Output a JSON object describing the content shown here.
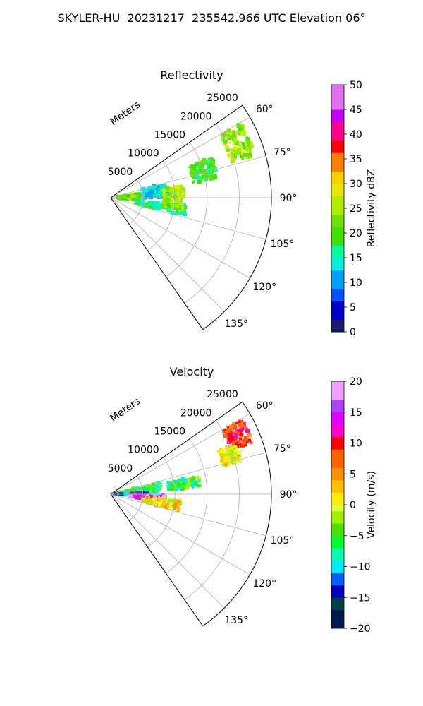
{
  "suptitle": "SKYLER-HU  20231217  235542.966 UTC Elevation 06°",
  "chart_data": [
    {
      "type": "polar-sector",
      "title": "Reflectivity",
      "radial_label": "Meters",
      "radial_ticks": [
        "5000",
        "10000",
        "15000",
        "20000",
        "25000"
      ],
      "radial_tick_values": [
        5000,
        10000,
        15000,
        20000,
        25000
      ],
      "rmax": 25000,
      "azimuth_range": [
        55,
        145
      ],
      "azimuth_ticks": [
        "60°",
        "75°",
        "90°",
        "105°",
        "120°",
        "135°"
      ],
      "azimuth_tick_values": [
        60,
        75,
        90,
        105,
        120,
        135
      ],
      "grid": true,
      "colorbar": {
        "label": "Reflectivity dBZ",
        "min": 0,
        "max": 50,
        "ticks": [
          "0",
          "5",
          "10",
          "15",
          "20",
          "25",
          "30",
          "35",
          "40",
          "45",
          "50"
        ],
        "tick_values": [
          0,
          5,
          10,
          15,
          20,
          25,
          30,
          35,
          40,
          45,
          50
        ]
      },
      "echo_regions": [
        {
          "az": [
            60,
            74
          ],
          "r": [
            19500,
            23500
          ],
          "value": 24
        },
        {
          "az": [
            82,
            95
          ],
          "r": [
            1000,
            5000
          ],
          "value": 22
        },
        {
          "az": [
            95,
            104
          ],
          "r": [
            4000,
            12000
          ],
          "value": 16
        },
        {
          "az": [
            75,
            90
          ],
          "r": [
            5000,
            9000
          ],
          "value": 13
        },
        {
          "az": [
            80,
            100
          ],
          "r": [
            8000,
            11500
          ],
          "value": 24
        },
        {
          "az": [
            68,
            80
          ],
          "r": [
            13000,
            17000
          ],
          "value": 20
        }
      ]
    },
    {
      "type": "polar-sector",
      "title": "Velocity",
      "radial_label": "Meters",
      "radial_ticks": [
        "5000",
        "10000",
        "15000",
        "20000",
        "25000"
      ],
      "radial_tick_values": [
        5000,
        10000,
        15000,
        20000,
        25000
      ],
      "rmax": 25000,
      "azimuth_range": [
        55,
        145
      ],
      "azimuth_ticks": [
        "60°",
        "75°",
        "90°",
        "105°",
        "120°",
        "135°"
      ],
      "azimuth_tick_values": [
        60,
        75,
        90,
        105,
        120,
        135
      ],
      "grid": true,
      "colorbar": {
        "label": "Velocity (m/s)",
        "min": -20,
        "max": 20,
        "ticks": [
          "−20",
          "−15",
          "−10",
          "−5",
          "0",
          "5",
          "10",
          "15",
          "20"
        ],
        "tick_values": [
          -20,
          -15,
          -10,
          -5,
          0,
          5,
          10,
          15,
          20
        ]
      },
      "echo_regions": [
        {
          "az": [
            60,
            70
          ],
          "r": [
            20000,
            23500
          ],
          "value": 9
        },
        {
          "az": [
            68,
            76
          ],
          "r": [
            18000,
            21000
          ],
          "value": 1
        },
        {
          "az": [
            76,
            88
          ],
          "r": [
            1000,
            8000
          ],
          "value": -5
        },
        {
          "az": [
            88,
            92
          ],
          "r": [
            500,
            6000
          ],
          "value": -12
        },
        {
          "az": [
            91,
            98
          ],
          "r": [
            3000,
            8500
          ],
          "value": 16
        },
        {
          "az": [
            95,
            104
          ],
          "r": [
            5000,
            11000
          ],
          "value": 2
        },
        {
          "az": [
            78,
            86
          ],
          "r": [
            9000,
            14000
          ],
          "value": -6
        }
      ]
    }
  ]
}
